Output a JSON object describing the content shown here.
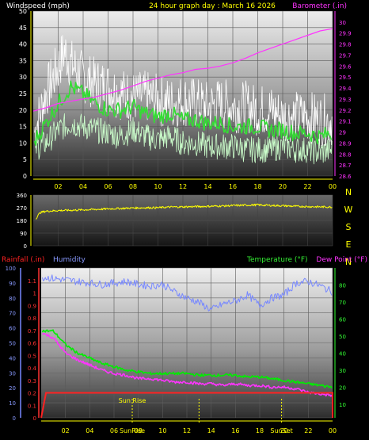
{
  "chart_data": [
    {
      "type": "line",
      "title": "24 hour graph day : March 16 2026",
      "y_left_label": "Windspeed (mph)",
      "y_right_label": "Barometer (.in)",
      "x_ticks": [
        "02",
        "04",
        "06",
        "08",
        "10",
        "12",
        "14",
        "16",
        "18",
        "20",
        "22",
        "00"
      ],
      "y_left_ticks": [
        0,
        5,
        10,
        15,
        20,
        25,
        30,
        35,
        40,
        45,
        50
      ],
      "y_right_ticks": [
        28.6,
        28.7,
        28.8,
        28.9,
        29,
        29.1,
        29.2,
        29.3,
        29.4,
        29.5,
        29.6,
        29.7,
        29.8,
        29.9,
        30
      ],
      "ylim_left": [
        0,
        50
      ],
      "ylim_right": [
        28.6,
        30.1
      ],
      "xlim_hours": [
        0,
        24
      ],
      "series": [
        {
          "key": "barometer",
          "color": "#ff33ff",
          "axis": "right",
          "x": [
            0,
            1,
            2,
            3,
            4,
            5,
            6,
            7,
            8,
            9,
            10,
            11,
            12,
            13,
            14,
            15,
            16,
            17,
            18,
            19,
            20,
            21,
            22,
            23,
            24
          ],
          "y": [
            29.19,
            29.22,
            29.26,
            29.28,
            29.3,
            29.32,
            29.35,
            29.38,
            29.42,
            29.46,
            29.49,
            29.52,
            29.54,
            29.57,
            29.58,
            29.6,
            29.63,
            29.67,
            29.72,
            29.76,
            29.8,
            29.84,
            29.88,
            29.92,
            29.94
          ]
        },
        {
          "key": "gust",
          "color": "#ffffff",
          "axis": "left",
          "x": [
            0,
            1,
            2,
            2.5,
            3,
            4,
            5,
            6,
            7,
            8,
            9,
            10,
            11,
            12,
            13,
            14,
            15,
            16,
            17,
            18,
            19,
            20,
            21,
            22,
            23,
            24
          ],
          "y": [
            12,
            25,
            33,
            38,
            34,
            30,
            28,
            27,
            25,
            24,
            24,
            23,
            22,
            23,
            22,
            21,
            22,
            21,
            21,
            20,
            20,
            18,
            18,
            18,
            17,
            17
          ]
        },
        {
          "key": "average",
          "color": "#33dd33",
          "axis": "left",
          "x": [
            0,
            1,
            2,
            3,
            4,
            5,
            6,
            7,
            8,
            9,
            10,
            11,
            12,
            13,
            14,
            15,
            16,
            17,
            18,
            19,
            20,
            21,
            22,
            23,
            24
          ],
          "y": [
            10,
            16,
            22,
            27,
            25,
            22,
            20,
            20,
            21,
            19,
            18,
            19,
            17,
            17,
            16,
            16,
            15,
            15,
            15,
            14,
            14,
            13,
            13,
            12,
            13
          ]
        },
        {
          "key": "wind",
          "color": "#ccffcc",
          "axis": "left",
          "x": [
            0,
            1,
            2,
            3,
            4,
            5,
            6,
            7,
            8,
            9,
            10,
            11,
            12,
            13,
            14,
            15,
            16,
            17,
            18,
            19,
            20,
            21,
            22,
            23,
            24
          ],
          "y": [
            8,
            10,
            14,
            16,
            15,
            14,
            13,
            12,
            14,
            12,
            11,
            12,
            10,
            10,
            9,
            9,
            9,
            8,
            8,
            8,
            9,
            8,
            8,
            7,
            8
          ]
        }
      ]
    },
    {
      "type": "line",
      "y_ticks": [
        0,
        90,
        180,
        270,
        360
      ],
      "ylim": [
        0,
        360
      ],
      "compass": [
        "N",
        "W",
        "S",
        "E",
        "N"
      ],
      "series": [
        {
          "key": "direction",
          "color": "#ffff00",
          "x": [
            0,
            0.3,
            1,
            2,
            3,
            4,
            5,
            6,
            7,
            8,
            9,
            10,
            11,
            12,
            13,
            14,
            15,
            16,
            17,
            18,
            19,
            20,
            21,
            22,
            23,
            24
          ],
          "y": [
            165,
            230,
            245,
            250,
            252,
            255,
            258,
            262,
            265,
            268,
            270,
            270,
            275,
            276,
            278,
            280,
            282,
            285,
            288,
            290,
            286,
            284,
            280,
            278,
            276,
            275
          ]
        }
      ]
    },
    {
      "type": "line",
      "labels": {
        "rainfall": "Rainfall (.in)",
        "humidity": "Humidity",
        "temperature": "Temperature (°F)",
        "dewpoint": "Dew Point (°F)"
      },
      "y_rain_ticks": [
        "0",
        "0.1",
        "0.2",
        "0.3",
        "0.4",
        "0.5",
        "0.6",
        "0.7",
        "0.8",
        "0.9",
        "1",
        "1.1"
      ],
      "y_hum_ticks": [
        0,
        10,
        20,
        30,
        40,
        50,
        60,
        70,
        80,
        90,
        100
      ],
      "y_temp_ticks": [
        10,
        20,
        30,
        40,
        50,
        60,
        70,
        80
      ],
      "ylim_rain": [
        0,
        1.2
      ],
      "ylim_temp": [
        2,
        90
      ],
      "annotations": [
        {
          "text": "Sun Rise",
          "hour": 7.5
        },
        {
          "text": "Sun Rise",
          "hour": 13
        },
        {
          "text": "SunSet",
          "hour": 19.8
        }
      ],
      "bottom_tick_labels": [
        {
          "text": "SunRise",
          "hour": 7.5
        },
        {
          "text": "SunSet",
          "hour": 19.8
        }
      ],
      "series": [
        {
          "key": "humidity",
          "color": "#7788ff",
          "axis": "humidity",
          "x": [
            0,
            1,
            2,
            3,
            4,
            5,
            6,
            7,
            8,
            9,
            10,
            11,
            12,
            13,
            14,
            15,
            16,
            17,
            18,
            19,
            20,
            21,
            22,
            23,
            24
          ],
          "y": [
            94,
            93,
            92,
            91,
            90,
            89,
            90,
            91,
            89,
            88,
            89,
            84,
            80,
            77,
            72,
            76,
            78,
            82,
            75,
            80,
            82,
            90,
            91,
            88,
            84
          ]
        },
        {
          "key": "temperature",
          "color": "#00ee00",
          "axis": "temp",
          "x": [
            0,
            1,
            2,
            3,
            4,
            5,
            6,
            7,
            8,
            9,
            10,
            11,
            12,
            13,
            14,
            15,
            16,
            17,
            18,
            19,
            20,
            21,
            22,
            23,
            24
          ],
          "y": [
            53,
            53,
            45,
            40,
            37,
            34,
            32,
            30,
            29,
            28,
            28,
            28,
            28,
            27,
            27,
            27,
            27,
            26,
            26,
            25,
            24,
            23,
            22,
            21,
            20
          ]
        },
        {
          "key": "dewpoint",
          "color": "#ff33ff",
          "axis": "temp",
          "x": [
            0,
            1,
            2,
            3,
            4,
            5,
            6,
            7,
            8,
            9,
            10,
            11,
            12,
            13,
            14,
            15,
            16,
            17,
            18,
            19,
            20,
            21,
            22,
            23,
            24
          ],
          "y": [
            52,
            49,
            40,
            36,
            33,
            30,
            28,
            27,
            25,
            25,
            24,
            23,
            23,
            22,
            22,
            21,
            22,
            21,
            21,
            20,
            20,
            19,
            17,
            16,
            15
          ]
        },
        {
          "key": "rainfall",
          "color": "#ff2222",
          "axis": "rain",
          "x": [
            0,
            0.4,
            1,
            24
          ],
          "y": [
            0,
            0.2,
            0.2,
            0.2
          ]
        }
      ]
    }
  ]
}
